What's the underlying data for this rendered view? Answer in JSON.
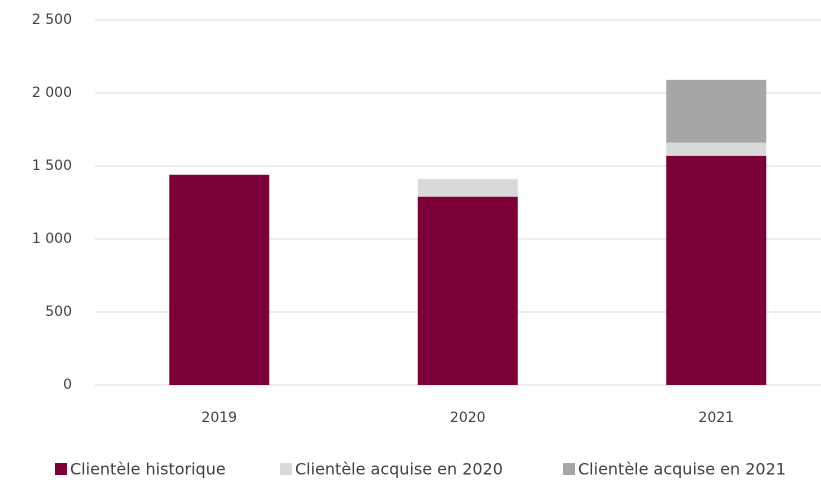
{
  "chart_data": {
    "type": "stacked_bar",
    "categories": [
      "2019",
      "2020",
      "2021"
    ],
    "series": [
      {
        "name": "Clientèle historique",
        "color": "#7a0037",
        "values": [
          1440,
          1290,
          1570
        ]
      },
      {
        "name": "Clientèle acquise en 2020",
        "color": "#d9d9d9",
        "values": [
          0,
          120,
          90
        ]
      },
      {
        "name": "Clientèle acquise en 2021",
        "color": "#a6a6a6",
        "values": [
          0,
          0,
          430
        ]
      }
    ],
    "ylim": [
      0,
      2500
    ],
    "yticks": [
      0,
      500,
      {
        "value": 1000,
        "label": "1 000"
      },
      {
        "value": 1500,
        "label": "1 500"
      },
      {
        "value": 2000,
        "label": "2 000"
      },
      {
        "value": 2500,
        "label": "2 500"
      }
    ],
    "grid": true,
    "legend": "bottom"
  }
}
